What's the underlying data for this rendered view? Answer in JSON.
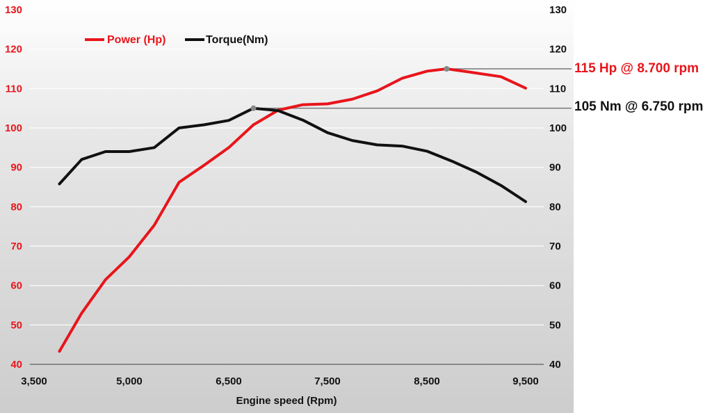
{
  "chart_data": {
    "type": "line",
    "xlabel": "Engine speed (Rpm)",
    "x_ticks": [
      "3,500",
      "5,000",
      "6,500",
      "7,500",
      "8,500",
      "9,500"
    ],
    "x_tick_values": [
      3500,
      5000,
      6500,
      7500,
      8500,
      9500
    ],
    "xlim": [
      3500,
      9750
    ],
    "y_left_ticks": [
      "40",
      "50",
      "60",
      "70",
      "80",
      "90",
      "100",
      "110",
      "120",
      "130"
    ],
    "y_right_ticks": [
      "40",
      "50",
      "60",
      "70",
      "80",
      "90",
      "100",
      "110",
      "120",
      "130"
    ],
    "ylim": [
      40,
      130
    ],
    "grid": true,
    "legend_position": "top-left",
    "colors": {
      "power": "#e8151b",
      "torque": "#111111",
      "marker": "#888888",
      "guide": "#777777"
    },
    "series": [
      {
        "name": "Power (Hp)",
        "key": "power",
        "axis": "left",
        "x": [
          3900,
          4250,
          4625,
          5000,
          5375,
          5750,
          6125,
          6500,
          6750,
          7000,
          7250,
          7500,
          7750,
          8000,
          8250,
          8500,
          8700,
          8900,
          9250,
          9500
        ],
        "values": [
          43.3,
          53,
          61.5,
          67.3,
          75.3,
          86.2,
          90.5,
          95,
          100.8,
          104.5,
          105.9,
          106.1,
          107.3,
          109.4,
          112.6,
          114.4,
          115,
          114.3,
          113,
          110.1
        ]
      },
      {
        "name": "Torque(Nm)",
        "key": "torque",
        "axis": "right",
        "x": [
          3900,
          4250,
          4625,
          5000,
          5375,
          5750,
          6125,
          6500,
          6750,
          7000,
          7250,
          7500,
          7750,
          8000,
          8250,
          8500,
          8750,
          9000,
          9250,
          9500
        ],
        "values": [
          85.8,
          92,
          94,
          94,
          95,
          100,
          100.8,
          101.9,
          105,
          104.4,
          102,
          98.8,
          96.8,
          95.7,
          95.4,
          94.1,
          91.6,
          88.8,
          85.4,
          81.3
        ]
      }
    ],
    "annotations": [
      {
        "text": "115 Hp @ 8.700 rpm",
        "series": "power",
        "x": 8700,
        "y": 115
      },
      {
        "text": "105 Nm @ 6.750 rpm",
        "series": "torque",
        "x": 6750,
        "y": 105
      }
    ]
  }
}
